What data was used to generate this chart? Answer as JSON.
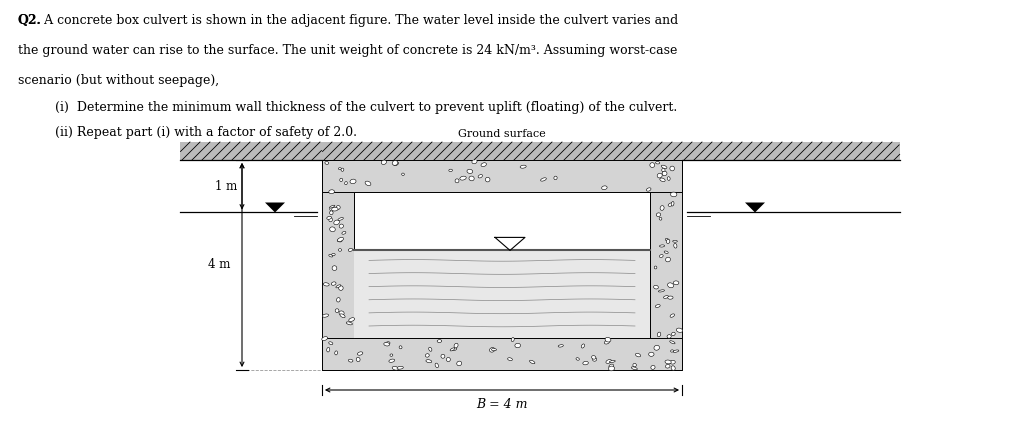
{
  "bg_color": "#ffffff",
  "text_color": "#000000",
  "concrete_fill": "#d8d8d8",
  "inner_fill": "#ffffff",
  "ground_surface_label": "Ground surface",
  "dim_1m": "1 m",
  "dim_4m": "4 m",
  "dim_B": "B = 4 m",
  "line1": "Q2. A concrete box culvert is shown in the adjacent figure. The water level inside the culvert varies and",
  "line2": "the ground water can rise to the surface. The unit weight of concrete is 24 kN/m³. Assuming worst-case",
  "line3": "scenario (but without seepage),",
  "line4i": "(i)  Determine the minimum wall thickness of the culvert to prevent uplift (floating) of the culvert.",
  "line4ii": "(ii) Repeat part (i) with a factor of safety of 2.0."
}
